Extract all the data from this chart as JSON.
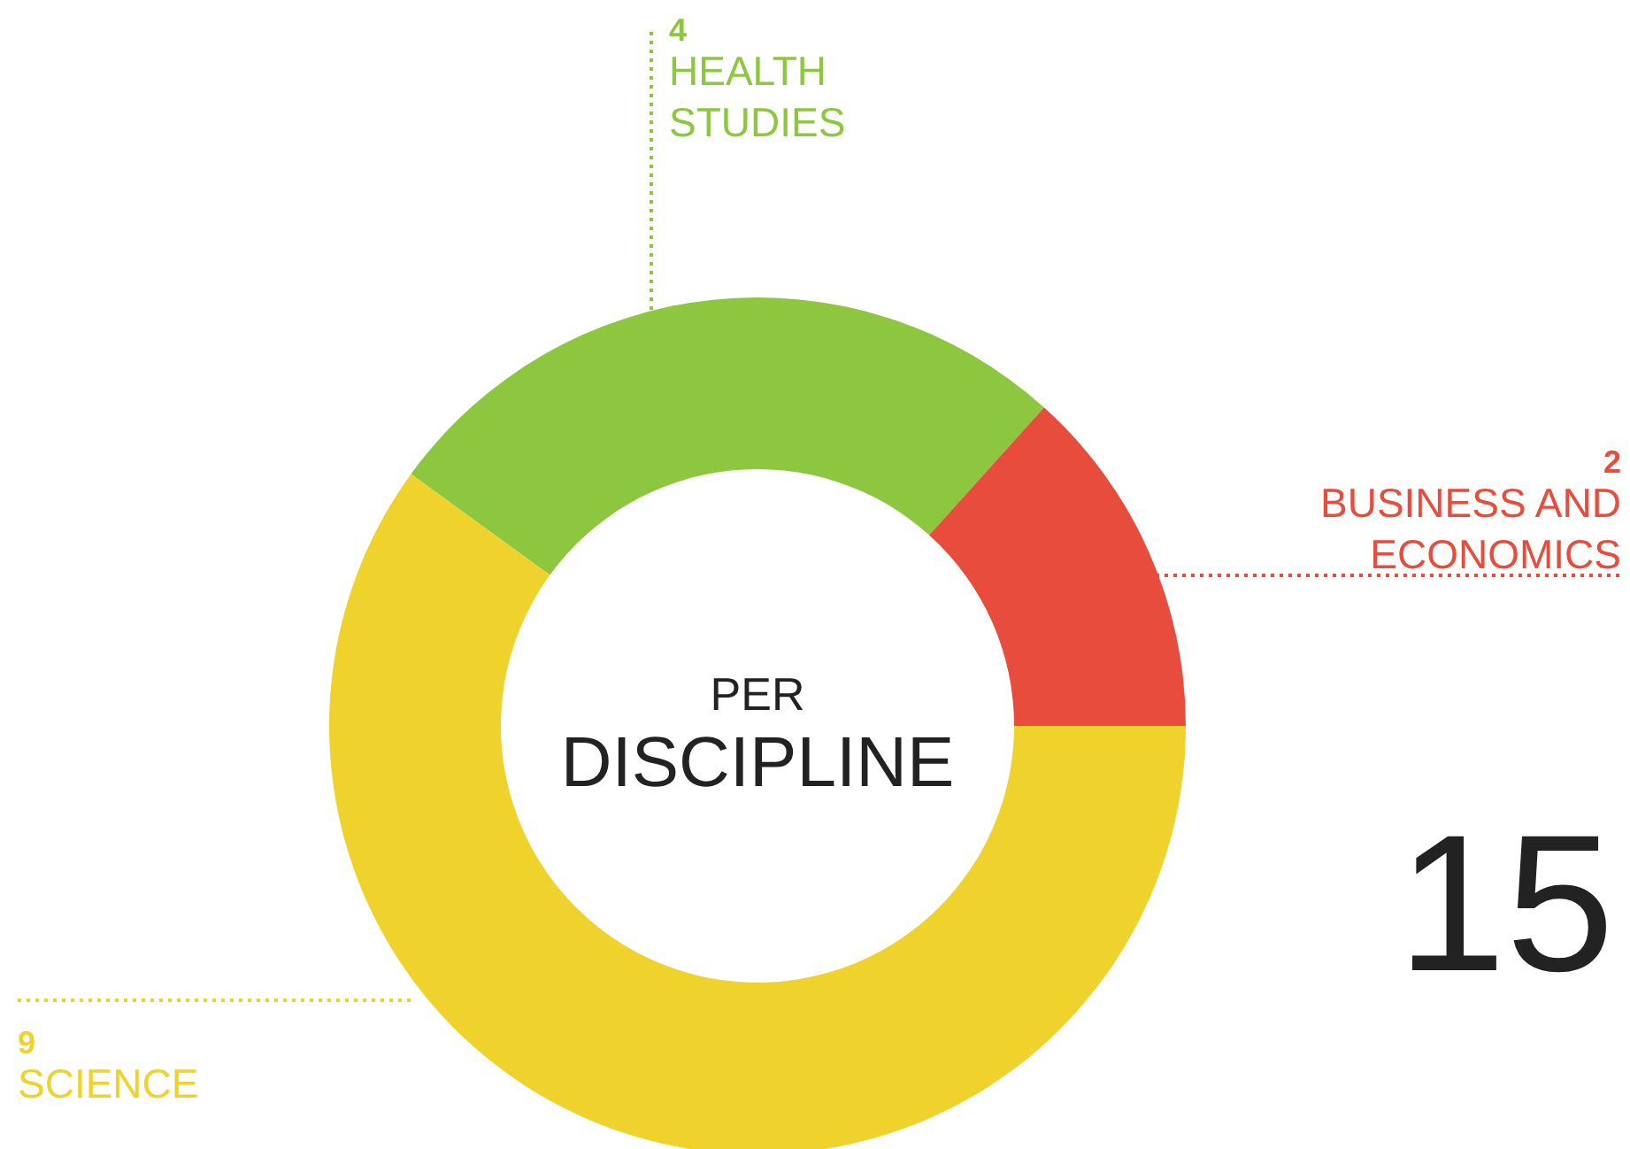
{
  "chart_data": {
    "type": "donut",
    "categories": [
      "HEALTH STUDIES",
      "BUSINESS AND ECONOMICS",
      "SCIENCE"
    ],
    "values": [
      4,
      2,
      9
    ],
    "colors": [
      "#8dc63f",
      "#e84c3d",
      "#f0d22c"
    ],
    "data_labels": true,
    "annotations": [
      "PER",
      "DISCIPLINE",
      "15"
    ]
  }
}
